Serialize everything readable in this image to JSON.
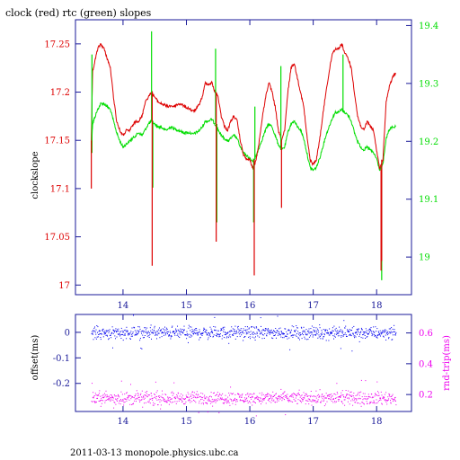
{
  "page": {
    "title": "clock (red) rtc (green) slopes",
    "footer": "2011-03-13  monopole.physics.ubc.ca"
  },
  "colors": {
    "clock": "#dd0000",
    "rtc": "#00dd00",
    "offset": "#0000ee",
    "rndtrip": "#ee00ee",
    "axis": "#1a1a99"
  },
  "chart_data": [
    {
      "type": "line",
      "title": "clock (red) rtc (green) slopes",
      "xlabel": "",
      "ylabel_left": "clockslope",
      "ylabel_right": "",
      "xlim": [
        13.25,
        18.55
      ],
      "ylim_left": [
        16.99,
        17.275
      ],
      "ylim_right": [
        18.935,
        19.41
      ],
      "x_ticks": [
        14,
        15,
        16,
        17,
        18
      ],
      "y_ticks_left": [
        17,
        17.05,
        17.1,
        17.15,
        17.2,
        17.25
      ],
      "y_ticks_right": [
        19,
        19.1,
        19.2,
        19.3,
        19.4
      ],
      "series": [
        {
          "name": "clock",
          "axis": "left",
          "x": [
            13.5,
            13.52,
            13.55,
            13.6,
            13.65,
            13.7,
            13.75,
            13.8,
            13.85,
            13.9,
            13.95,
            14.0,
            14.05,
            14.1,
            14.15,
            14.2,
            14.25,
            14.3,
            14.35,
            14.4,
            14.45,
            14.5,
            14.55,
            14.6,
            14.65,
            14.7,
            14.75,
            14.8,
            14.85,
            14.9,
            14.95,
            15.0,
            15.05,
            15.1,
            15.15,
            15.2,
            15.25,
            15.3,
            15.35,
            15.4,
            15.45,
            15.5,
            15.55,
            15.6,
            15.65,
            15.7,
            15.75,
            15.8,
            15.85,
            15.9,
            15.95,
            16.0,
            16.05,
            16.1,
            16.15,
            16.2,
            16.25,
            16.3,
            16.35,
            16.4,
            16.45,
            16.5,
            16.55,
            16.6,
            16.65,
            16.7,
            16.75,
            16.8,
            16.85,
            16.9,
            16.95,
            17.0,
            17.05,
            17.1,
            17.15,
            17.2,
            17.25,
            17.3,
            17.35,
            17.4,
            17.45,
            17.5,
            17.55,
            17.6,
            17.65,
            17.7,
            17.75,
            17.8,
            17.85,
            17.9,
            17.95,
            18.0,
            18.05,
            18.1,
            18.15,
            18.2,
            18.25,
            18.3
          ],
          "values": [
            17.15,
            17.22,
            17.23,
            17.245,
            17.25,
            17.245,
            17.235,
            17.225,
            17.195,
            17.17,
            17.16,
            17.155,
            17.16,
            17.16,
            17.165,
            17.17,
            17.17,
            17.175,
            17.19,
            17.195,
            17.2,
            17.195,
            17.19,
            17.188,
            17.187,
            17.185,
            17.186,
            17.185,
            17.187,
            17.188,
            17.186,
            17.184,
            17.183,
            17.18,
            17.182,
            17.187,
            17.195,
            17.21,
            17.208,
            17.21,
            17.2,
            17.195,
            17.175,
            17.165,
            17.16,
            17.17,
            17.175,
            17.17,
            17.15,
            17.135,
            17.13,
            17.13,
            17.12,
            17.13,
            17.15,
            17.175,
            17.195,
            17.21,
            17.2,
            17.185,
            17.16,
            17.15,
            17.16,
            17.2,
            17.225,
            17.23,
            17.215,
            17.2,
            17.185,
            17.155,
            17.13,
            17.125,
            17.13,
            17.15,
            17.175,
            17.2,
            17.22,
            17.24,
            17.245,
            17.245,
            17.25,
            17.24,
            17.235,
            17.225,
            17.2,
            17.175,
            17.165,
            17.16,
            17.17,
            17.165,
            17.16,
            17.14,
            17.12,
            17.13,
            17.19,
            17.205,
            17.215,
            17.22
          ]
        },
        {
          "name": "rtc",
          "axis": "right",
          "x": [
            13.5,
            13.52,
            13.55,
            13.6,
            13.65,
            13.7,
            13.75,
            13.8,
            13.85,
            13.9,
            13.95,
            14.0,
            14.05,
            14.1,
            14.15,
            14.2,
            14.25,
            14.3,
            14.35,
            14.4,
            14.45,
            14.5,
            14.55,
            14.6,
            14.65,
            14.7,
            14.75,
            14.8,
            14.85,
            14.9,
            14.95,
            15.0,
            15.05,
            15.1,
            15.15,
            15.2,
            15.25,
            15.3,
            15.35,
            15.4,
            15.45,
            15.5,
            15.55,
            15.6,
            15.65,
            15.7,
            15.75,
            15.8,
            15.85,
            15.9,
            15.95,
            16.0,
            16.05,
            16.1,
            16.15,
            16.2,
            16.25,
            16.3,
            16.35,
            16.4,
            16.45,
            16.5,
            16.55,
            16.6,
            16.65,
            16.7,
            16.75,
            16.8,
            16.85,
            16.9,
            16.95,
            17.0,
            17.05,
            17.1,
            17.15,
            17.2,
            17.25,
            17.3,
            17.35,
            17.4,
            17.45,
            17.5,
            17.55,
            17.6,
            17.65,
            17.7,
            17.75,
            17.8,
            17.85,
            17.9,
            17.95,
            18.0,
            18.05,
            18.1,
            18.15,
            18.2,
            18.25,
            18.3
          ],
          "values": [
            19.18,
            19.23,
            19.24,
            19.255,
            19.265,
            19.265,
            19.26,
            19.255,
            19.235,
            19.215,
            19.2,
            19.19,
            19.195,
            19.2,
            19.205,
            19.21,
            19.215,
            19.21,
            19.22,
            19.23,
            19.235,
            19.23,
            19.225,
            19.225,
            19.22,
            19.22,
            19.225,
            19.222,
            19.22,
            19.218,
            19.215,
            19.215,
            19.215,
            19.212,
            19.215,
            19.218,
            19.225,
            19.235,
            19.235,
            19.238,
            19.23,
            19.22,
            19.21,
            19.205,
            19.2,
            19.205,
            19.21,
            19.205,
            19.19,
            19.18,
            19.175,
            19.17,
            19.165,
            19.175,
            19.19,
            19.205,
            19.22,
            19.23,
            19.225,
            19.21,
            19.195,
            19.185,
            19.19,
            19.215,
            19.23,
            19.235,
            19.225,
            19.22,
            19.205,
            19.18,
            19.155,
            19.15,
            19.155,
            19.17,
            19.19,
            19.21,
            19.225,
            19.24,
            19.25,
            19.25,
            19.255,
            19.25,
            19.245,
            19.235,
            19.215,
            19.2,
            19.19,
            19.185,
            19.19,
            19.185,
            19.18,
            19.17,
            19.15,
            19.16,
            19.205,
            19.22,
            19.225,
            19.225
          ]
        }
      ],
      "annotations": {
        "clock_spikes": [
          {
            "x": 13.5,
            "from": 17.15,
            "to": 17.1
          },
          {
            "x": 14.46,
            "from": 17.2,
            "to": 17.02
          },
          {
            "x": 15.47,
            "from": 17.2,
            "to": 17.045
          },
          {
            "x": 16.07,
            "from": 17.13,
            "to": 17.01
          },
          {
            "x": 16.5,
            "from": 17.15,
            "to": 17.08
          },
          {
            "x": 18.07,
            "from": 17.12,
            "to": 17.015
          },
          {
            "x": 18.08,
            "from": 17.13,
            "to": 17.025
          }
        ],
        "rtc_spikes": [
          {
            "x": 13.51,
            "from": 19.18,
            "to": 19.35
          },
          {
            "x": 14.45,
            "from": 19.235,
            "to": 19.39
          },
          {
            "x": 14.47,
            "from": 19.235,
            "to": 19.12
          },
          {
            "x": 15.46,
            "from": 19.23,
            "to": 19.36
          },
          {
            "x": 15.48,
            "from": 19.23,
            "to": 19.06
          },
          {
            "x": 16.06,
            "from": 19.17,
            "to": 19.06
          },
          {
            "x": 16.08,
            "from": 19.17,
            "to": 19.26
          },
          {
            "x": 16.49,
            "from": 19.185,
            "to": 19.33
          },
          {
            "x": 17.47,
            "from": 19.25,
            "to": 19.35
          },
          {
            "x": 18.08,
            "from": 19.16,
            "to": 18.96
          }
        ]
      }
    },
    {
      "type": "scatter",
      "xlabel": "",
      "ylabel_left": "offset(ms)",
      "ylabel_right": "rnd-trip(ms)",
      "xlim": [
        13.25,
        18.55
      ],
      "ylim_left": [
        -0.31,
        0.07
      ],
      "ylim_right": [
        0.09,
        0.72
      ],
      "x_ticks": [
        14,
        15,
        16,
        17,
        18
      ],
      "y_ticks_left": [
        0,
        -0.1,
        -0.2
      ],
      "y_ticks_right": [
        0.6,
        0.4,
        0.2
      ],
      "series": [
        {
          "name": "offset",
          "axis": "left",
          "x_range": [
            13.5,
            18.3
          ],
          "center": 0.0,
          "spread": 0.012
        },
        {
          "name": "rnd-trip",
          "axis": "right",
          "x_range": [
            13.5,
            18.3
          ],
          "center": 0.18,
          "spread": 0.02
        }
      ]
    }
  ]
}
